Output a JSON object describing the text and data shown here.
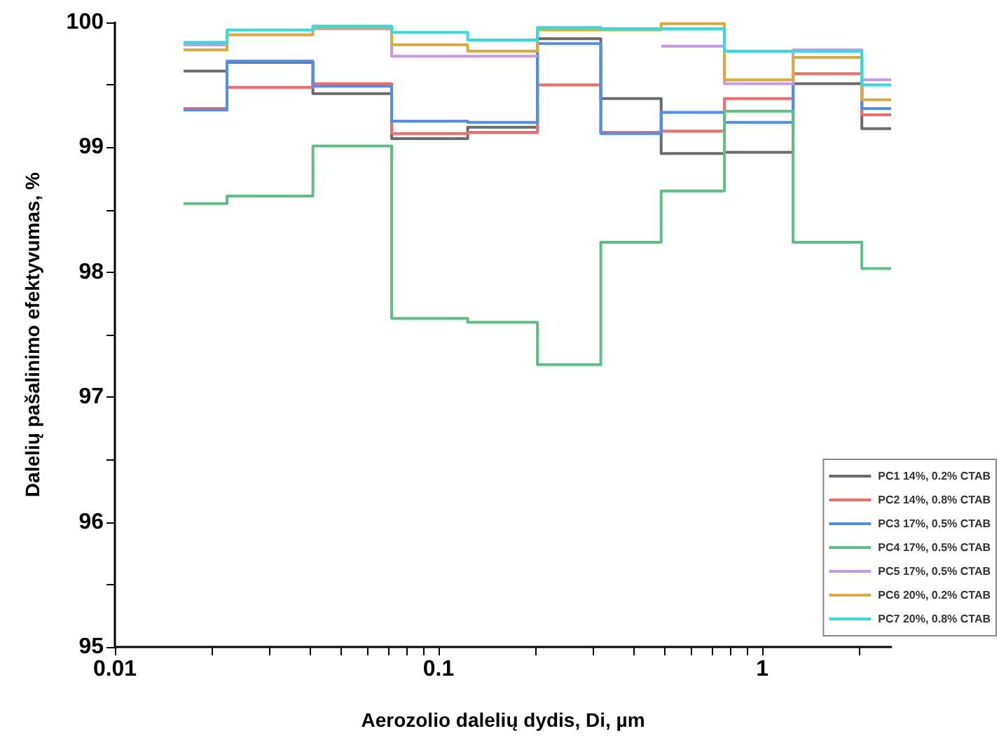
{
  "chart_data": {
    "type": "step",
    "xlabel": "Aerozolio dalelių dydis, Di, µm",
    "ylabel": "Dalelių pašalinimo efektyvumas, %",
    "x": [
      0.0163,
      0.0222,
      0.0409,
      0.0716,
      0.123,
      0.202,
      0.317,
      0.487,
      0.764,
      1.245,
      2.03,
      2.5
    ],
    "series": [
      {
        "name": "PC1 14%, 0.2% CTAB",
        "color": "#6b6b6b",
        "values": [
          99.61,
          99.68,
          99.43,
          99.07,
          99.16,
          99.87,
          99.39,
          98.95,
          98.96,
          99.51,
          99.15,
          99.15
        ]
      },
      {
        "name": "PC2 14%, 0.8% CTAB",
        "color": "#f26b6b",
        "values": [
          99.31,
          99.48,
          99.51,
          99.11,
          99.12,
          99.5,
          99.12,
          99.13,
          99.39,
          99.59,
          99.26,
          99.26
        ]
      },
      {
        "name": "PC3 17%, 0.5% CTAB",
        "color": "#4f8ef0",
        "values": [
          99.3,
          99.69,
          99.49,
          99.21,
          99.2,
          99.83,
          99.11,
          99.28,
          99.2,
          99.72,
          99.31,
          99.31
        ]
      },
      {
        "name": "PC4 17%, 0.5% CTAB",
        "color": "#5cbf85",
        "values": [
          98.55,
          98.61,
          99.01,
          97.63,
          97.6,
          97.26,
          98.24,
          98.65,
          99.29,
          98.24,
          98.03,
          98.03
        ]
      },
      {
        "name": "PC5 17%, 0.5% CTAB",
        "color": "#c39ae8",
        "values": [
          99.82,
          null,
          99.95,
          99.73,
          99.73,
          null,
          null,
          99.81,
          99.51,
          99.78,
          99.54,
          99.54
        ]
      },
      {
        "name": "PC6 20%, 0.2% CTAB",
        "color": "#dcaa3a",
        "values": [
          99.78,
          99.9,
          99.96,
          99.82,
          99.77,
          99.94,
          99.94,
          99.99,
          99.54,
          99.72,
          99.38,
          99.38
        ]
      },
      {
        "name": "PC7 20%, 0.8% CTAB",
        "color": "#33dcdc",
        "values": [
          99.84,
          99.94,
          99.97,
          99.92,
          99.86,
          99.96,
          99.95,
          99.95,
          99.77,
          99.77,
          99.5,
          99.5
        ]
      }
    ],
    "log": "x",
    "xlim": [
      0.01,
      2.5
    ],
    "xticks": [
      0.01,
      {
        "value": 0.02,
        "label": null
      },
      {
        "value": 0.03,
        "label": null
      },
      {
        "value": 0.04,
        "label": null
      },
      {
        "value": 0.05,
        "label": null
      },
      {
        "value": 0.06,
        "label": null
      },
      {
        "value": 0.07,
        "label": null
      },
      {
        "value": 0.08,
        "label": null
      },
      {
        "value": 0.09,
        "label": null
      },
      0.1,
      {
        "value": 0.2,
        "label": null
      },
      {
        "value": 0.3,
        "label": null
      },
      {
        "value": 0.4,
        "label": null
      },
      {
        "value": 0.5,
        "label": null
      },
      {
        "value": 0.6,
        "label": null
      },
      {
        "value": 0.7,
        "label": null
      },
      {
        "value": 0.8,
        "label": null
      },
      {
        "value": 0.9,
        "label": null
      },
      1,
      {
        "value": 2,
        "label": null
      }
    ],
    "ylim": [
      95,
      100
    ],
    "yticks": [
      95,
      {
        "value": 95.5,
        "label": null
      },
      96,
      {
        "value": 96.5,
        "label": null
      },
      97,
      {
        "value": 97.5,
        "label": null
      },
      98,
      {
        "value": 98.5,
        "label": null
      },
      99,
      {
        "value": 99.5,
        "label": null
      },
      100
    ],
    "grid": false,
    "legend": "bottom right",
    "marker": "none",
    "line_style": "solid"
  }
}
